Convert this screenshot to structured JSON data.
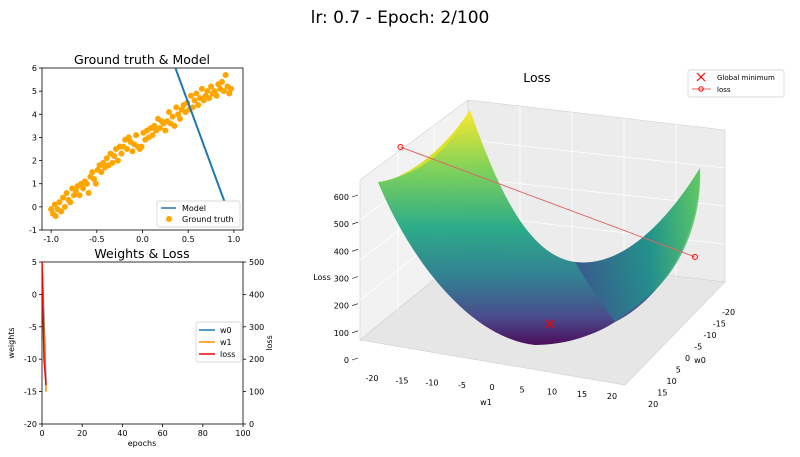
{
  "figure_title": "lr: 0.7 - Epoch: 2/100",
  "colors": {
    "model": "#1f77b4",
    "ground_truth": "#ffa500",
    "w0": "#1f77b4",
    "w1": "#ff8c00",
    "loss": "#ff0000",
    "loss_path": "#e06666",
    "minimum": "#ff0000"
  },
  "chart_data": [
    {
      "type": "scatter",
      "title": "Ground truth & Model",
      "xlim": [
        -1.1,
        1.1
      ],
      "ylim": [
        -1,
        6
      ],
      "xticks": [
        "-1.0",
        "-0.5",
        "0.0",
        "0.5",
        "1.0"
      ],
      "xtick_values": [
        -1.0,
        -0.5,
        0.0,
        0.5,
        1.0
      ],
      "yticks": [
        "-1",
        "0",
        "1",
        "2",
        "3",
        "4",
        "5",
        "6"
      ],
      "ytick_values": [
        -1,
        0,
        1,
        2,
        3,
        4,
        5,
        6
      ],
      "legend": [
        "Model",
        "Ground truth"
      ],
      "legend_position": "lower-right",
      "series": [
        {
          "name": "Model",
          "type": "line",
          "x": [
            0.36,
            0.9
          ],
          "y": [
            6.0,
            0.2
          ]
        },
        {
          "name": "Ground truth",
          "type": "scatter",
          "x": [
            -1.0,
            -0.98,
            -0.96,
            -0.95,
            -0.93,
            -0.91,
            -0.89,
            -0.87,
            -0.85,
            -0.83,
            -0.81,
            -0.79,
            -0.77,
            -0.75,
            -0.73,
            -0.71,
            -0.69,
            -0.67,
            -0.65,
            -0.63,
            -0.61,
            -0.59,
            -0.57,
            -0.55,
            -0.53,
            -0.51,
            -0.49,
            -0.47,
            -0.45,
            -0.43,
            -0.41,
            -0.39,
            -0.37,
            -0.35,
            -0.33,
            -0.31,
            -0.29,
            -0.27,
            -0.25,
            -0.23,
            -0.21,
            -0.19,
            -0.17,
            -0.15,
            -0.13,
            -0.11,
            -0.09,
            -0.07,
            -0.05,
            -0.03,
            -0.01,
            0.01,
            0.03,
            0.05,
            0.07,
            0.09,
            0.11,
            0.13,
            0.15,
            0.17,
            0.19,
            0.21,
            0.23,
            0.25,
            0.27,
            0.29,
            0.31,
            0.33,
            0.35,
            0.37,
            0.39,
            0.41,
            0.43,
            0.45,
            0.47,
            0.49,
            0.51,
            0.53,
            0.55,
            0.57,
            0.59,
            0.61,
            0.63,
            0.65,
            0.67,
            0.69,
            0.71,
            0.73,
            0.75,
            0.77,
            0.79,
            0.81,
            0.83,
            0.85,
            0.87,
            0.89,
            0.91,
            0.93,
            0.95,
            0.97
          ],
          "y": [
            -0.1,
            -0.3,
            0.1,
            -0.4,
            -0.1,
            0.2,
            -0.2,
            0.4,
            0.0,
            0.6,
            0.3,
            0.2,
            0.8,
            0.5,
            0.7,
            0.9,
            0.5,
            1.0,
            0.8,
            1.1,
            1.0,
            0.6,
            1.3,
            1.5,
            1.2,
            1.0,
            1.6,
            1.8,
            1.5,
            1.9,
            1.7,
            2.1,
            1.8,
            2.3,
            1.9,
            2.2,
            2.5,
            2.0,
            2.6,
            2.3,
            2.6,
            2.9,
            2.5,
            3.0,
            2.8,
            2.4,
            2.7,
            3.1,
            2.6,
            2.5,
            2.6,
            3.2,
            2.9,
            3.3,
            3.0,
            3.4,
            3.1,
            3.5,
            3.3,
            3.8,
            3.4,
            3.7,
            3.6,
            3.3,
            3.7,
            4.1,
            3.6,
            3.9,
            3.5,
            4.3,
            4.0,
            3.8,
            4.2,
            4.4,
            4.1,
            4.5,
            4.2,
            4.8,
            4.3,
            4.6,
            4.9,
            4.4,
            4.7,
            5.1,
            4.6,
            4.8,
            5.0,
            4.7,
            5.2,
            4.9,
            5.0,
            4.8,
            5.3,
            5.1,
            5.4,
            5.0,
            5.7,
            5.2,
            4.9,
            5.1
          ]
        }
      ]
    },
    {
      "type": "line",
      "title": "Weights & Loss",
      "xlabel": "epochs",
      "ylabel": "weights",
      "ylabel_right": "loss",
      "xlim": [
        0,
        100
      ],
      "ylim": [
        -20,
        5
      ],
      "ylim_right": [
        0,
        500
      ],
      "xticks": [
        "0",
        "20",
        "40",
        "60",
        "80",
        "100"
      ],
      "xtick_values": [
        0,
        20,
        40,
        60,
        80,
        100
      ],
      "yticks": [
        "-20",
        "-15",
        "-10",
        "-5",
        "0",
        "5"
      ],
      "ytick_values": [
        -20,
        -15,
        -10,
        -5,
        0,
        5
      ],
      "yticks_right": [
        "0",
        "100",
        "200",
        "300",
        "400",
        "500"
      ],
      "ytick_values_right": [
        0,
        100,
        200,
        300,
        400,
        500
      ],
      "legend": [
        "w0",
        "w1",
        "loss"
      ],
      "legend_position": "center-right",
      "series": [
        {
          "name": "w0",
          "axis": "left",
          "x": [
            0,
            1,
            2
          ],
          "y": [
            5,
            -4,
            -14
          ]
        },
        {
          "name": "w1",
          "axis": "left",
          "x": [
            0,
            1,
            2
          ],
          "y": [
            5,
            -6,
            -15
          ]
        },
        {
          "name": "loss",
          "axis": "right",
          "x": [
            0,
            1,
            2
          ],
          "y": [
            500,
            200,
            120
          ]
        }
      ]
    },
    {
      "type": "surface",
      "title": "Loss",
      "xlabel": "w1",
      "ylabel": "w0",
      "zlabel": "Loss",
      "w1_ticks": [
        "-20",
        "-15",
        "-10",
        "-5",
        "0",
        "5",
        "10",
        "15",
        "20"
      ],
      "w0_ticks": [
        "-20",
        "-15",
        "-10",
        "-5",
        "0",
        "5",
        "10",
        "15",
        "20"
      ],
      "loss_ticks": [
        "0",
        "100",
        "200",
        "300",
        "400",
        "500",
        "600"
      ],
      "legend": [
        "Global minimum",
        "loss"
      ],
      "legend_position": "upper-right",
      "path": [
        {
          "w0": 5,
          "w1": -20,
          "loss": 600
        },
        {
          "w0": -8,
          "w1": 20,
          "loss": 210
        }
      ],
      "minimum": {
        "w0": 3,
        "w1": 2,
        "loss": 0
      }
    }
  ]
}
